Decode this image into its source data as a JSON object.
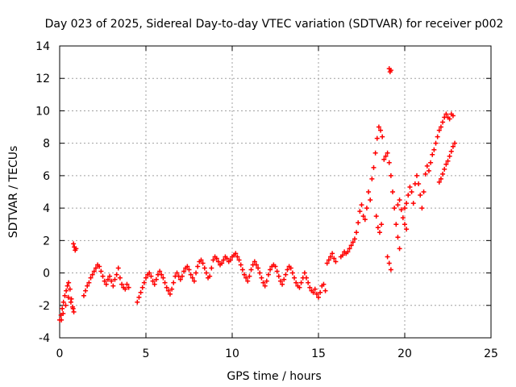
{
  "chart_data": {
    "type": "scatter",
    "title": "Day 023 of 2025, Sidereal Day-to-day VTEC variation (SDTVAR) for receiver p002",
    "xlabel": "GPS time / hours",
    "ylabel": "SDTVAR / TECUs",
    "xlim": [
      0,
      25
    ],
    "ylim": [
      -4,
      14
    ],
    "xticks": [
      0,
      5,
      10,
      15,
      20,
      25
    ],
    "yticks": [
      -4,
      -2,
      0,
      2,
      4,
      6,
      8,
      10,
      12,
      14
    ],
    "xtick_labels": [
      "0",
      "5",
      "10",
      "15",
      "20",
      "25"
    ],
    "ytick_labels": [
      "-4",
      "-2",
      "0",
      "2",
      "4",
      "6",
      "8",
      "10",
      "12",
      "14"
    ],
    "grid": true,
    "marker": "+",
    "marker_color": "#ff0000",
    "series": [
      {
        "name": "SDTVAR",
        "points": [
          [
            0.0,
            -2.9
          ],
          [
            0.08,
            -2.6
          ],
          [
            0.15,
            -2.2
          ],
          [
            0.22,
            -1.8
          ],
          [
            0.3,
            -1.4
          ],
          [
            0.38,
            -1.1
          ],
          [
            0.45,
            -0.8
          ],
          [
            0.52,
            -0.6
          ],
          [
            0.6,
            -1.0
          ],
          [
            0.68,
            -1.6
          ],
          [
            0.75,
            -2.1
          ],
          [
            0.82,
            -2.4
          ],
          [
            0.1,
            -2.9
          ],
          [
            0.2,
            -2.5
          ],
          [
            0.35,
            -2.0
          ],
          [
            0.5,
            -1.5
          ],
          [
            0.65,
            -1.8
          ],
          [
            0.78,
            -2.2
          ],
          [
            0.8,
            1.8
          ],
          [
            0.85,
            1.6
          ],
          [
            0.9,
            1.4
          ],
          [
            0.95,
            1.5
          ],
          [
            1.4,
            -1.4
          ],
          [
            1.5,
            -1.1
          ],
          [
            1.6,
            -0.8
          ],
          [
            1.7,
            -0.6
          ],
          [
            1.8,
            -0.3
          ],
          [
            1.9,
            -0.1
          ],
          [
            2.0,
            0.1
          ],
          [
            2.1,
            0.3
          ],
          [
            2.2,
            0.5
          ],
          [
            2.3,
            0.4
          ],
          [
            2.4,
            0.1
          ],
          [
            2.5,
            -0.2
          ],
          [
            2.6,
            -0.5
          ],
          [
            2.7,
            -0.7
          ],
          [
            2.8,
            -0.4
          ],
          [
            2.9,
            -0.2
          ],
          [
            3.0,
            -0.5
          ],
          [
            3.1,
            -0.8
          ],
          [
            3.2,
            -0.4
          ],
          [
            3.3,
            -0.1
          ],
          [
            3.4,
            0.3
          ],
          [
            3.5,
            -0.3
          ],
          [
            3.6,
            -0.7
          ],
          [
            3.7,
            -0.9
          ],
          [
            3.8,
            -1.0
          ],
          [
            3.9,
            -0.7
          ],
          [
            4.0,
            -0.9
          ],
          [
            4.5,
            -1.8
          ],
          [
            4.6,
            -1.5
          ],
          [
            4.7,
            -1.2
          ],
          [
            4.8,
            -0.9
          ],
          [
            4.9,
            -0.6
          ],
          [
            5.0,
            -0.3
          ],
          [
            5.1,
            -0.1
          ],
          [
            5.2,
            0.0
          ],
          [
            5.3,
            -0.2
          ],
          [
            5.4,
            -0.5
          ],
          [
            5.5,
            -0.7
          ],
          [
            5.6,
            -0.4
          ],
          [
            5.7,
            -0.1
          ],
          [
            5.8,
            0.1
          ],
          [
            5.9,
            -0.1
          ],
          [
            6.0,
            -0.3
          ],
          [
            6.1,
            -0.6
          ],
          [
            6.2,
            -0.9
          ],
          [
            6.3,
            -1.1
          ],
          [
            6.4,
            -1.3
          ],
          [
            6.5,
            -1.0
          ],
          [
            6.6,
            -0.6
          ],
          [
            6.7,
            -0.2
          ],
          [
            6.8,
            0.0
          ],
          [
            6.9,
            -0.2
          ],
          [
            7.0,
            -0.4
          ],
          [
            7.1,
            -0.2
          ],
          [
            7.2,
            0.1
          ],
          [
            7.3,
            0.3
          ],
          [
            7.4,
            0.4
          ],
          [
            7.5,
            0.2
          ],
          [
            7.6,
            -0.1
          ],
          [
            7.7,
            -0.3
          ],
          [
            7.8,
            -0.5
          ],
          [
            7.9,
            0.0
          ],
          [
            8.0,
            0.4
          ],
          [
            8.1,
            0.7
          ],
          [
            8.2,
            0.8
          ],
          [
            8.3,
            0.6
          ],
          [
            8.4,
            0.3
          ],
          [
            8.5,
            0.0
          ],
          [
            8.6,
            -0.3
          ],
          [
            8.7,
            -0.2
          ],
          [
            8.8,
            0.3
          ],
          [
            8.9,
            0.8
          ],
          [
            9.0,
            1.0
          ],
          [
            9.1,
            0.9
          ],
          [
            9.2,
            0.7
          ],
          [
            9.3,
            0.5
          ],
          [
            9.4,
            0.6
          ],
          [
            9.5,
            0.8
          ],
          [
            9.6,
            1.0
          ],
          [
            9.7,
            0.9
          ],
          [
            9.8,
            0.7
          ],
          [
            9.9,
            0.8
          ],
          [
            10.0,
            1.0
          ],
          [
            10.1,
            1.1
          ],
          [
            10.2,
            1.2
          ],
          [
            10.3,
            1.0
          ],
          [
            10.4,
            0.8
          ],
          [
            10.5,
            0.5
          ],
          [
            10.6,
            0.2
          ],
          [
            10.7,
            -0.1
          ],
          [
            10.8,
            -0.3
          ],
          [
            10.9,
            -0.5
          ],
          [
            11.0,
            -0.2
          ],
          [
            11.1,
            0.2
          ],
          [
            11.2,
            0.5
          ],
          [
            11.3,
            0.7
          ],
          [
            11.4,
            0.5
          ],
          [
            11.5,
            0.3
          ],
          [
            11.6,
            0.0
          ],
          [
            11.7,
            -0.3
          ],
          [
            11.8,
            -0.6
          ],
          [
            11.9,
            -0.8
          ],
          [
            12.0,
            -0.5
          ],
          [
            12.1,
            -0.1
          ],
          [
            12.2,
            0.2
          ],
          [
            12.3,
            0.4
          ],
          [
            12.4,
            0.5
          ],
          [
            12.5,
            0.4
          ],
          [
            12.6,
            0.1
          ],
          [
            12.7,
            -0.2
          ],
          [
            12.8,
            -0.5
          ],
          [
            12.9,
            -0.7
          ],
          [
            13.0,
            -0.4
          ],
          [
            13.1,
            -0.1
          ],
          [
            13.2,
            0.2
          ],
          [
            13.3,
            0.4
          ],
          [
            13.4,
            0.3
          ],
          [
            13.5,
            0.0
          ],
          [
            13.6,
            -0.3
          ],
          [
            13.7,
            -0.6
          ],
          [
            13.8,
            -0.8
          ],
          [
            13.9,
            -0.9
          ],
          [
            14.0,
            -0.6
          ],
          [
            14.1,
            -0.3
          ],
          [
            14.2,
            0.0
          ],
          [
            14.3,
            -0.3
          ],
          [
            14.4,
            -0.6
          ],
          [
            14.5,
            -0.9
          ],
          [
            14.6,
            -1.1
          ],
          [
            14.7,
            -1.2
          ],
          [
            14.8,
            -1.0
          ],
          [
            14.9,
            -1.3
          ],
          [
            15.0,
            -1.5
          ],
          [
            15.1,
            -1.2
          ],
          [
            15.2,
            -0.8
          ],
          [
            15.3,
            -0.7
          ],
          [
            15.4,
            -1.1
          ],
          [
            15.5,
            0.6
          ],
          [
            15.6,
            0.8
          ],
          [
            15.7,
            1.0
          ],
          [
            15.8,
            1.2
          ],
          [
            15.9,
            0.9
          ],
          [
            16.0,
            0.7
          ],
          [
            16.3,
            1.0
          ],
          [
            16.4,
            1.1
          ],
          [
            16.5,
            1.3
          ],
          [
            16.6,
            1.2
          ],
          [
            16.7,
            1.3
          ],
          [
            16.8,
            1.5
          ],
          [
            16.9,
            1.7
          ],
          [
            17.0,
            1.9
          ],
          [
            17.1,
            2.1
          ],
          [
            17.2,
            2.5
          ],
          [
            17.3,
            3.1
          ],
          [
            17.4,
            3.8
          ],
          [
            17.5,
            4.2
          ],
          [
            17.6,
            3.5
          ],
          [
            17.7,
            3.3
          ],
          [
            17.8,
            4.0
          ],
          [
            17.9,
            5.0
          ],
          [
            18.0,
            4.5
          ],
          [
            18.1,
            5.8
          ],
          [
            18.2,
            6.5
          ],
          [
            18.3,
            7.4
          ],
          [
            18.4,
            8.3
          ],
          [
            18.5,
            9.0
          ],
          [
            18.6,
            8.8
          ],
          [
            18.7,
            8.4
          ],
          [
            18.35,
            3.5
          ],
          [
            18.45,
            2.8
          ],
          [
            18.55,
            2.5
          ],
          [
            18.65,
            3.0
          ],
          [
            18.8,
            7.0
          ],
          [
            18.9,
            7.2
          ],
          [
            19.0,
            7.4
          ],
          [
            19.1,
            6.8
          ],
          [
            19.2,
            6.0
          ],
          [
            19.3,
            5.0
          ],
          [
            19.4,
            4.0
          ],
          [
            19.5,
            3.0
          ],
          [
            19.6,
            2.2
          ],
          [
            19.7,
            1.5
          ],
          [
            19.0,
            1.0
          ],
          [
            19.1,
            0.6
          ],
          [
            19.2,
            0.2
          ],
          [
            19.1,
            12.6
          ],
          [
            19.15,
            12.4
          ],
          [
            19.2,
            12.5
          ],
          [
            19.6,
            4.2
          ],
          [
            19.7,
            4.5
          ],
          [
            19.8,
            3.9
          ],
          [
            19.9,
            3.4
          ],
          [
            20.0,
            3.0
          ],
          [
            20.1,
            2.7
          ],
          [
            20.0,
            4.0
          ],
          [
            20.1,
            4.3
          ],
          [
            20.2,
            4.8
          ],
          [
            20.3,
            5.3
          ],
          [
            20.4,
            5.0
          ],
          [
            20.5,
            4.3
          ],
          [
            20.6,
            5.5
          ],
          [
            20.7,
            6.0
          ],
          [
            20.8,
            5.5
          ],
          [
            20.9,
            4.8
          ],
          [
            21.0,
            4.0
          ],
          [
            21.1,
            5.0
          ],
          [
            21.2,
            6.1
          ],
          [
            21.3,
            6.6
          ],
          [
            21.4,
            6.3
          ],
          [
            21.5,
            6.8
          ],
          [
            21.6,
            7.3
          ],
          [
            21.7,
            7.6
          ],
          [
            21.8,
            8.0
          ],
          [
            21.9,
            8.4
          ],
          [
            22.0,
            8.8
          ],
          [
            22.1,
            9.0
          ],
          [
            22.2,
            9.3
          ],
          [
            22.3,
            9.6
          ],
          [
            22.4,
            9.8
          ],
          [
            22.5,
            9.6
          ],
          [
            22.6,
            9.5
          ],
          [
            22.7,
            9.8
          ],
          [
            22.8,
            9.7
          ],
          [
            22.0,
            5.6
          ],
          [
            22.1,
            5.8
          ],
          [
            22.2,
            6.1
          ],
          [
            22.3,
            6.4
          ],
          [
            22.4,
            6.7
          ],
          [
            22.5,
            6.9
          ],
          [
            22.6,
            7.2
          ],
          [
            22.7,
            7.5
          ],
          [
            22.8,
            7.8
          ],
          [
            22.9,
            8.0
          ]
        ]
      }
    ]
  }
}
